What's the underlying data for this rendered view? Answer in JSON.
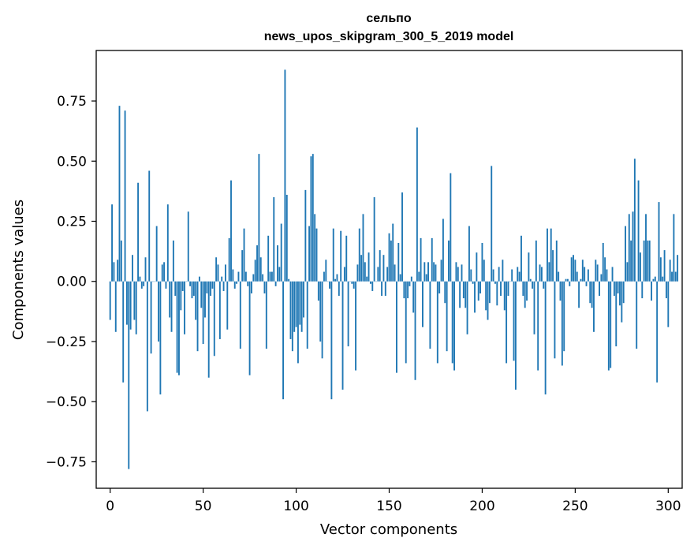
{
  "chart_data": {
    "type": "bar",
    "title": "сельпо",
    "subtitle": "news_upos_skipgram_300_5_2019 model",
    "xlabel": "Vector components",
    "ylabel": "Components values",
    "xlim": [
      -7.5,
      307.5
    ],
    "ylim": [
      -0.86,
      0.96
    ],
    "xticks": [
      0,
      50,
      100,
      150,
      200,
      250,
      300
    ],
    "xtick_labels": [
      "0",
      "50",
      "100",
      "150",
      "200",
      "250",
      "300"
    ],
    "yticks": [
      -0.75,
      -0.5,
      -0.25,
      0.0,
      0.25,
      0.5,
      0.75
    ],
    "ytick_labels": [
      "−0.75",
      "−0.50",
      "−0.25",
      "0.00",
      "0.25",
      "0.50",
      "0.75"
    ],
    "color": "#1f77b4",
    "grid": false,
    "values": [
      -0.16,
      0.32,
      0.08,
      -0.21,
      0.09,
      0.73,
      0.17,
      -0.42,
      0.71,
      -0.18,
      -0.78,
      -0.2,
      0.11,
      -0.16,
      -0.22,
      0.41,
      0.02,
      -0.03,
      -0.02,
      0.1,
      -0.54,
      0.46,
      -0.3,
      0.0,
      0.0,
      0.23,
      -0.25,
      -0.47,
      0.07,
      0.08,
      -0.03,
      0.32,
      -0.15,
      -0.21,
      0.17,
      -0.06,
      -0.38,
      -0.39,
      -0.12,
      -0.04,
      -0.22,
      0.0,
      0.29,
      -0.02,
      -0.07,
      -0.06,
      -0.16,
      -0.29,
      0.02,
      -0.11,
      -0.26,
      -0.15,
      -0.05,
      -0.4,
      -0.06,
      -0.03,
      -0.31,
      0.1,
      0.07,
      -0.24,
      0.02,
      -0.04,
      0.07,
      -0.2,
      0.18,
      0.42,
      0.05,
      -0.03,
      -0.01,
      0.04,
      -0.28,
      0.13,
      0.22,
      0.04,
      -0.02,
      -0.39,
      -0.05,
      0.03,
      0.09,
      0.15,
      0.53,
      0.1,
      0.03,
      -0.05,
      -0.28,
      0.19,
      0.04,
      0.04,
      0.35,
      -0.02,
      0.15,
      0.06,
      0.24,
      -0.49,
      0.88,
      0.36,
      0.01,
      -0.24,
      -0.29,
      -0.21,
      -0.19,
      -0.34,
      -0.18,
      -0.21,
      -0.15,
      0.38,
      -0.28,
      0.23,
      0.52,
      0.53,
      0.28,
      0.22,
      -0.08,
      -0.25,
      -0.32,
      0.04,
      0.09,
      0.0,
      -0.03,
      -0.49,
      0.22,
      0.01,
      0.03,
      -0.06,
      0.21,
      -0.45,
      0.06,
      0.19,
      -0.27,
      0.0,
      -0.01,
      -0.03,
      -0.37,
      0.07,
      0.22,
      0.11,
      0.28,
      0.08,
      0.02,
      0.12,
      -0.01,
      -0.04,
      0.35,
      0.0,
      0.06,
      0.13,
      -0.06,
      0.11,
      -0.06,
      0.06,
      0.2,
      0.17,
      0.24,
      0.07,
      -0.38,
      0.16,
      0.03,
      0.37,
      -0.07,
      -0.34,
      -0.07,
      -0.02,
      0.02,
      -0.13,
      -0.41,
      0.64,
      0.04,
      0.18,
      -0.19,
      0.08,
      0.03,
      0.08,
      -0.28,
      0.18,
      0.08,
      0.07,
      -0.34,
      -0.05,
      0.09,
      0.26,
      -0.09,
      -0.29,
      0.17,
      0.45,
      -0.34,
      -0.37,
      0.08,
      0.06,
      -0.11,
      0.07,
      -0.07,
      -0.11,
      -0.22,
      0.23,
      0.05,
      -0.01,
      -0.13,
      0.12,
      -0.08,
      -0.05,
      0.16,
      0.09,
      -0.12,
      -0.16,
      -0.09,
      0.48,
      0.05,
      -0.01,
      -0.1,
      0.06,
      -0.06,
      0.09,
      -0.12,
      -0.34,
      -0.06,
      0.0,
      0.05,
      -0.33,
      -0.45,
      0.06,
      0.04,
      0.19,
      -0.06,
      -0.11,
      -0.08,
      0.12,
      0.01,
      -0.03,
      -0.22,
      0.17,
      -0.37,
      0.07,
      0.06,
      -0.03,
      -0.47,
      0.22,
      0.08,
      0.22,
      0.13,
      -0.32,
      0.17,
      0.04,
      -0.08,
      -0.35,
      -0.29,
      0.01,
      0.01,
      -0.02,
      0.1,
      0.11,
      0.09,
      0.04,
      -0.11,
      0.01,
      0.09,
      0.06,
      -0.02,
      0.05,
      -0.09,
      -0.11,
      -0.21,
      0.09,
      0.07,
      -0.06,
      0.03,
      0.16,
      0.1,
      0.05,
      -0.37,
      -0.36,
      0.06,
      -0.06,
      -0.27,
      -0.05,
      -0.1,
      -0.17,
      -0.09,
      0.23,
      0.08,
      0.28,
      0.17,
      0.29,
      0.51,
      -0.28,
      0.42,
      0.12,
      -0.07,
      0.17,
      0.28,
      0.17,
      0.17,
      -0.08,
      0.01,
      0.02,
      -0.42,
      0.33,
      0.1,
      0.02,
      0.13,
      -0.07,
      -0.19,
      0.09,
      0.04,
      0.28,
      0.04,
      0.11
    ]
  }
}
